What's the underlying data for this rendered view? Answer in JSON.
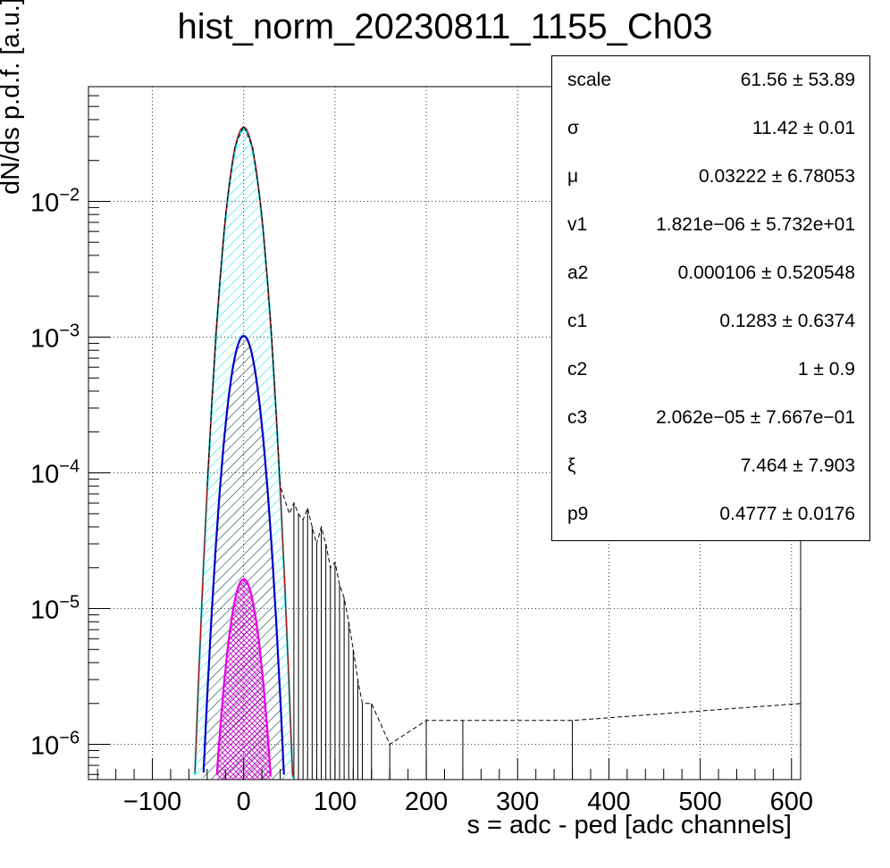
{
  "chart_data": {
    "type": "line",
    "title": "hist_norm_20230811_1155_Ch03",
    "xlabel": "s = adc - ped [adc channels]",
    "ylabel": "dN/ds p.d.f. [a.u.]",
    "xlim": [
      -170,
      610
    ],
    "ylim": [
      5.5e-07,
      0.07
    ],
    "yscale": "log",
    "grid": true,
    "x_ticks": [
      -100,
      0,
      100,
      200,
      300,
      400,
      500,
      600
    ],
    "x_tick_labels": [
      "−100",
      "0",
      "100",
      "200",
      "300",
      "400",
      "500",
      "600"
    ],
    "y_ticks": [
      {
        "value": 1e-06,
        "base": "10",
        "exp": "−6"
      },
      {
        "value": 1e-05,
        "base": "10",
        "exp": "−5"
      },
      {
        "value": 0.0001,
        "base": "10",
        "exp": "−4"
      },
      {
        "value": 0.001,
        "base": "10",
        "exp": "−3"
      },
      {
        "value": 0.01,
        "base": "10",
        "exp": "−2"
      }
    ],
    "series": [
      {
        "color": "#000000",
        "style": "histogram",
        "x": [
          -40,
          -30,
          -20,
          -10,
          0,
          10,
          20,
          30,
          40,
          50,
          55,
          60,
          65,
          70,
          75,
          80,
          85,
          90,
          95,
          100,
          105,
          110,
          115,
          120,
          125,
          130,
          140,
          160,
          200,
          240,
          360,
          610
        ],
        "y": [
          8e-05,
          0.0012,
          0.008,
          0.025,
          0.036,
          0.025,
          0.008,
          0.0012,
          8e-05,
          5e-05,
          6e-05,
          5e-05,
          4.5e-05,
          5.5e-05,
          4e-05,
          3e-05,
          4e-05,
          3e-05,
          2e-05,
          2.2e-05,
          1.5e-05,
          1.2e-05,
          8e-06,
          5e-06,
          3e-06,
          2e-06,
          2e-06,
          1e-06,
          1.5e-06,
          1.5e-06,
          1.5e-06,
          2e-06
        ]
      },
      {
        "color": "#00e5ee",
        "style": "gaussian",
        "amplitude": 0.034,
        "mu": 0.03,
        "sigma": 11.42
      },
      {
        "color": "#0000c8",
        "style": "gaussian",
        "amplitude": 0.00102,
        "mu": 0.03,
        "sigma": 11.42
      },
      {
        "color": "#e600e6",
        "style": "gaussian",
        "amplitude": 1.65e-05,
        "mu": 0.03,
        "sigma": 11.42
      },
      {
        "color": "#c80000",
        "style": "gaussian",
        "amplitude": 0.0352,
        "mu": 0.03,
        "sigma": 11.42
      }
    ]
  },
  "stats_box": [
    {
      "name": "scale",
      "value": "61.56 ± 53.89"
    },
    {
      "name": "σ",
      "value": "11.42 ± 0.01"
    },
    {
      "name": "μ",
      "value": "0.03222 ± 6.78053"
    },
    {
      "name": "v1",
      "value": "1.821e−06 ± 5.732e+01"
    },
    {
      "name": "a2",
      "value": "0.000106 ± 0.520548"
    },
    {
      "name": "c1",
      "value": "0.1283 ± 0.6374"
    },
    {
      "name": "c2",
      "value": "1 ± 0.9"
    },
    {
      "name": "c3",
      "value": "2.062e−05 ± 7.667e−01"
    },
    {
      "name": "ξ",
      "value": "7.464 ± 7.903"
    },
    {
      "name": "p9",
      "value": "0.4777 ± 0.0176"
    }
  ]
}
